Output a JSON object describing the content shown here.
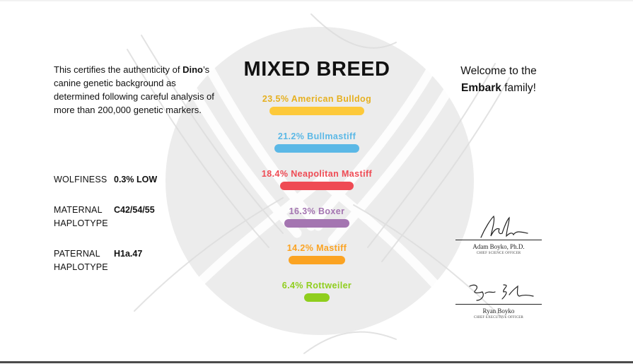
{
  "intro": {
    "prefix": "This certifies the authenticity of ",
    "dog_name": "Dino",
    "suffix": "’s canine genetic background as determined following careful analysis of more than 200,000 genetic markers."
  },
  "stats": [
    {
      "label": "WOLFINESS",
      "value": "0.3% LOW"
    },
    {
      "label": "MATERNAL HAPLOTYPE",
      "value": "C42/54/55"
    },
    {
      "label": "PATERNAL HAPLOTYPE",
      "value": "H1a.47"
    }
  ],
  "title": "MIXED BREED",
  "breeds": [
    {
      "label": "23.5% American Bulldog",
      "percent": 23.5,
      "color": "#fdc93a"
    },
    {
      "label": "21.2% Bullmastiff",
      "percent": 21.2,
      "color": "#5bb8e6"
    },
    {
      "label": "18.4% Neapolitan Mastiff",
      "percent": 18.4,
      "color": "#ef4b54"
    },
    {
      "label": "16.3% Boxer",
      "percent": 16.3,
      "color": "#a475b1"
    },
    {
      "label": "14.2% Mastiff",
      "percent": 14.2,
      "color": "#fba322"
    },
    {
      "label": "6.4% Rottweiler",
      "percent": 6.4,
      "color": "#8fce1d"
    }
  ],
  "welcome": {
    "line1": "Welcome to the",
    "brand": "Embark",
    "line2_suffix": " family!"
  },
  "signatures": [
    {
      "name": "Adam Boyko, Ph.D.",
      "role": "CHIEF SCIENCE OFFICER"
    },
    {
      "name": "Ryan Boyko",
      "role": "CHIEF EXECUTIVE OFFICER"
    }
  ]
}
